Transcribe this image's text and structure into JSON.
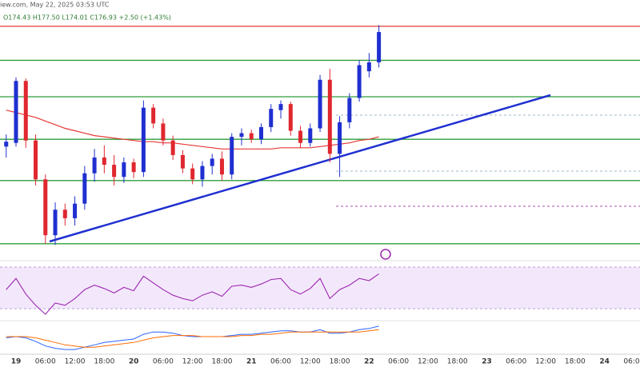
{
  "chart_data": {
    "type": "candlestick",
    "source": "iew.com, May 22, 2025 03:53 UTC",
    "ohlc_text": "O174.43 H177.50 L174.01 C176.93 +2.50 (+1.43%)",
    "categories": [
      null,
      "19",
      null,
      null,
      "06:00",
      null,
      null,
      "12:00",
      null,
      null,
      "18:00",
      null,
      null,
      "20",
      null,
      null,
      "06:00",
      null,
      null,
      "12:00",
      null,
      null,
      "18:00",
      null,
      null,
      "21",
      null,
      null,
      "06:00",
      null,
      null,
      "12:00",
      null,
      null,
      "18:00",
      null,
      null,
      "22",
      null,
      null,
      "06:00",
      null,
      null,
      "12:00",
      null,
      null,
      "18:00",
      null,
      null,
      "23",
      null,
      null,
      "06:00",
      null,
      null,
      "12:00",
      null,
      null,
      "18:00",
      null,
      null,
      "24",
      null,
      null,
      "06:00"
    ],
    "open": [
      167.5,
      167.8,
      172.9,
      168.0,
      164.8,
      160.2,
      162.3,
      161.6,
      162.8,
      165.3,
      166.6,
      166.0,
      165.0,
      166.2,
      165.4,
      170.7,
      169.4,
      168.0,
      166.8,
      165.7,
      164.8,
      165.9,
      166.5,
      165.2,
      168.3,
      168.6,
      168.1,
      169.1,
      170.5,
      171.0,
      168.8,
      167.8,
      169.0,
      173.0,
      166.9,
      169.5,
      171.5,
      173.7,
      174.43,
      null,
      null,
      null,
      null,
      null,
      null,
      null,
      null,
      null,
      null,
      null,
      null,
      null,
      null,
      null,
      null,
      null,
      null,
      null,
      null,
      null,
      null,
      null,
      null,
      null,
      null
    ],
    "high": [
      168.5,
      173.2,
      173.1,
      168.5,
      165.2,
      162.9,
      162.8,
      163.4,
      165.9,
      167.3,
      167.6,
      166.8,
      166.6,
      166.5,
      171.3,
      171.0,
      169.8,
      168.4,
      167.2,
      166.1,
      166.3,
      166.9,
      167.1,
      168.6,
      169.0,
      168.9,
      169.4,
      171.0,
      171.3,
      171.2,
      169.2,
      169.4,
      173.4,
      173.9,
      170.0,
      171.9,
      174.6,
      175.2,
      177.5,
      null,
      null,
      null,
      null,
      null,
      null,
      null,
      null,
      null,
      null,
      null,
      null,
      null,
      null,
      null,
      null,
      null,
      null,
      null,
      null,
      null,
      null,
      null,
      null,
      null,
      null
    ],
    "low": [
      166.6,
      167.5,
      167.4,
      164.3,
      159.5,
      159.4,
      161.0,
      161.0,
      162.3,
      164.6,
      165.3,
      164.3,
      164.5,
      164.9,
      165.0,
      169.0,
      167.6,
      166.4,
      165.3,
      164.4,
      164.2,
      165.2,
      164.7,
      164.8,
      167.6,
      167.8,
      167.7,
      168.7,
      169.8,
      168.4,
      167.4,
      167.5,
      168.7,
      166.2,
      165.0,
      169.0,
      171.2,
      173.2,
      174.01,
      null,
      null,
      null,
      null,
      null,
      null,
      null,
      null,
      null,
      null,
      null,
      null,
      null,
      null,
      null,
      null,
      null,
      null,
      null,
      null,
      null,
      null,
      null,
      null,
      null,
      null
    ],
    "close": [
      167.9,
      172.9,
      168.0,
      164.8,
      160.2,
      162.3,
      161.6,
      162.8,
      165.3,
      166.6,
      166.0,
      165.0,
      166.2,
      165.4,
      170.7,
      169.4,
      168.0,
      166.8,
      165.7,
      164.8,
      165.9,
      166.5,
      165.2,
      168.3,
      168.6,
      168.1,
      169.1,
      170.6,
      171.0,
      168.8,
      167.8,
      169.0,
      173.0,
      166.9,
      169.5,
      171.5,
      174.2,
      174.43,
      176.93,
      null,
      null,
      null,
      null,
      null,
      null,
      null,
      null,
      null,
      null,
      null,
      null,
      null,
      null,
      null,
      null,
      null,
      null,
      null,
      null,
      null,
      null,
      null,
      null,
      null,
      null
    ],
    "up_color": "#1f2fd0",
    "down_color": "#e0272f",
    "ylim": [
      158.5,
      178.25
    ],
    "levels": [
      {
        "value": 177.4,
        "color": "#e53935"
      },
      {
        "value": 174.6,
        "color": "#2e9e3a"
      },
      {
        "value": 171.6,
        "color": "#2e9e3a"
      },
      {
        "value": 168.1,
        "color": "#2e9e3a"
      },
      {
        "value": 164.7,
        "color": "#2e9e3a"
      },
      {
        "value": 159.5,
        "color": "#2e9e3a"
      }
    ],
    "ma": {
      "color": "#e53935",
      "values": [
        170.5,
        170.3,
        170.1,
        169.9,
        169.6,
        169.3,
        169.0,
        168.8,
        168.6,
        168.4,
        168.3,
        168.2,
        168.1,
        168.0,
        167.9,
        167.9,
        167.8,
        167.8,
        167.7,
        167.6,
        167.5,
        167.4,
        167.3,
        167.3,
        167.3,
        167.3,
        167.3,
        167.3,
        167.4,
        167.4,
        167.4,
        167.4,
        167.5,
        167.6,
        167.7,
        167.8,
        168.0,
        168.1,
        168.3,
        null,
        null,
        null,
        null,
        null,
        null,
        null,
        null,
        null,
        null,
        null,
        null,
        null,
        null,
        null,
        null,
        null,
        null,
        null,
        null,
        null,
        null,
        null,
        null,
        null,
        null
      ]
    },
    "rsi": {
      "color": "#9c27b0",
      "ylim": [
        25,
        75
      ],
      "values": [
        52,
        62,
        48,
        38,
        30,
        40,
        38,
        44,
        52,
        56,
        53,
        49,
        54,
        51,
        64,
        58,
        52,
        47,
        44,
        42,
        47,
        50,
        46,
        55,
        56,
        54,
        57,
        61,
        62,
        52,
        48,
        53,
        62,
        44,
        52,
        56,
        62,
        60,
        66,
        null,
        null,
        null,
        null,
        null,
        null,
        null,
        null,
        null,
        null,
        null,
        null,
        null,
        null,
        null,
        null,
        null,
        null,
        null,
        null,
        null,
        null,
        null,
        null,
        null,
        null
      ]
    },
    "macd": {
      "ylim": [
        -1.4,
        1.0
      ],
      "macd_color": "#2962ff",
      "signal_color": "#ff6d00",
      "macd": [
        -0.2,
        -0.1,
        -0.2,
        -0.5,
        -0.9,
        -1.1,
        -1.2,
        -1.2,
        -1.0,
        -0.8,
        -0.6,
        -0.5,
        -0.4,
        -0.3,
        0.1,
        0.3,
        0.3,
        0.2,
        0.0,
        -0.1,
        -0.1,
        -0.1,
        -0.1,
        0.0,
        0.1,
        0.1,
        0.2,
        0.3,
        0.4,
        0.4,
        0.3,
        0.3,
        0.5,
        0.2,
        0.2,
        0.3,
        0.5,
        0.6,
        0.8,
        null,
        null,
        null,
        null,
        null,
        null,
        null,
        null,
        null,
        null,
        null,
        null,
        null,
        null,
        null,
        null,
        null,
        null,
        null,
        null,
        null,
        null,
        null,
        null,
        null,
        null
      ],
      "signal": [
        -0.1,
        -0.1,
        -0.1,
        -0.2,
        -0.4,
        -0.6,
        -0.8,
        -0.9,
        -1.0,
        -1.0,
        -0.9,
        -0.8,
        -0.7,
        -0.6,
        -0.4,
        -0.2,
        -0.1,
        0.0,
        0.0,
        0.0,
        -0.1,
        -0.1,
        -0.1,
        -0.1,
        0.0,
        0.0,
        0.1,
        0.1,
        0.2,
        0.3,
        0.3,
        0.3,
        0.3,
        0.3,
        0.3,
        0.3,
        0.3,
        0.4,
        0.5,
        null,
        null,
        null,
        null,
        null,
        null,
        null,
        null,
        null,
        null,
        null,
        null,
        null,
        null,
        null,
        null,
        null,
        null,
        null,
        null,
        null,
        null,
        null,
        null,
        null,
        null
      ]
    }
  }
}
